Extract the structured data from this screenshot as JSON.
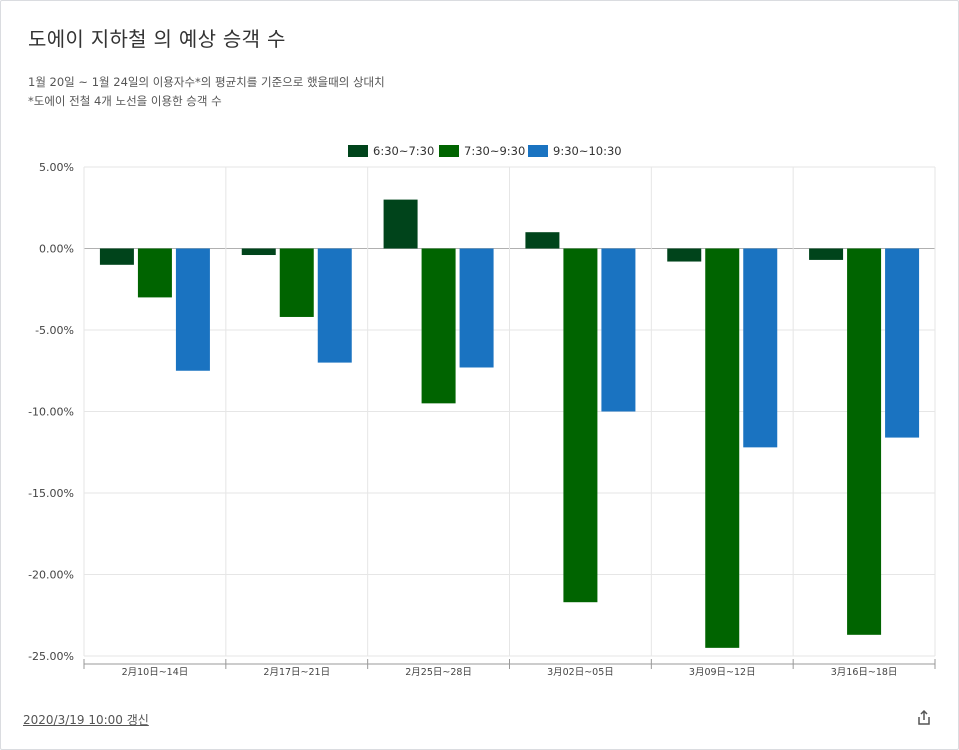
{
  "title": "도에이 지하철 의 예상 승객 수",
  "subtitles": [
    "1월 20일 ~ 1월 24일의 이용자수*의 평균치를 기준으로 했을때의 상대치",
    "*도에이 전철 4개 노선을 이용한 승객 수"
  ],
  "footer": {
    "updated_label": "2020/3/19 10:00 갱신",
    "share_icon": "share-icon"
  },
  "chart_data": {
    "type": "bar",
    "categories": [
      "2月10日~14日",
      "2月17日~21日",
      "2月25日~28日",
      "3月02日~05日",
      "3月09日~12日",
      "3月16日~18日"
    ],
    "series": [
      {
        "name": "6:30~7:30",
        "color": "#00441b",
        "values": [
          -1.0,
          -0.4,
          3.0,
          1.0,
          -0.8,
          -0.7
        ]
      },
      {
        "name": "7:30~9:30",
        "color": "#006400",
        "values": [
          -3.0,
          -4.2,
          -9.5,
          -21.7,
          -24.5,
          -23.7
        ]
      },
      {
        "name": "9:30~10:30",
        "color": "#1a73c1",
        "values": [
          -7.5,
          -7.0,
          -7.3,
          -10.0,
          -12.2,
          -11.6
        ]
      }
    ],
    "yticks": [
      "5.00%",
      "0.00%",
      "-5.00%",
      "-10.00%",
      "-15.00%",
      "-20.00%",
      "-25.00%"
    ],
    "ylim": [
      -25,
      5
    ],
    "legend_position": "top",
    "grid": true
  }
}
